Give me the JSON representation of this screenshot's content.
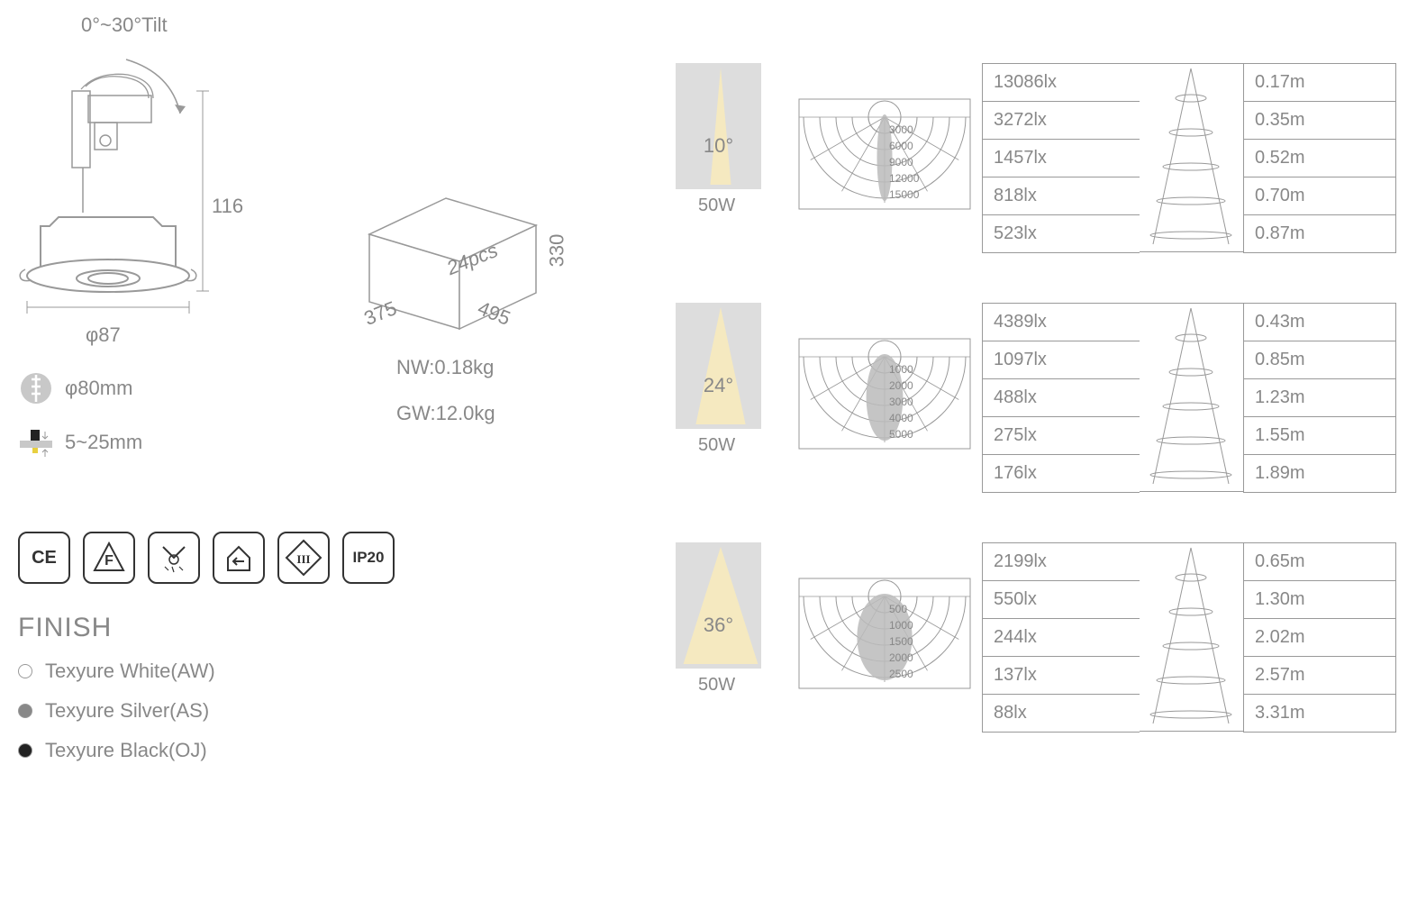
{
  "dimensions": {
    "tilt": "0°~30°Tilt",
    "height": "116",
    "diameter": "φ87",
    "cutout": "φ80mm",
    "thickness": "5~25mm"
  },
  "packaging": {
    "qty": "24pcs",
    "depth": "375",
    "width": "495",
    "height": "330",
    "nw": "NW:0.18kg",
    "gw": "GW:12.0kg"
  },
  "certifications": [
    "CE",
    "F",
    "",
    "",
    "III",
    "IP20"
  ],
  "finish": {
    "title": "FINISH",
    "options": [
      {
        "label": "Texyure White(AW)",
        "color": "#ffffff"
      },
      {
        "label": "Texyure Silver(AS)",
        "color": "#888888"
      },
      {
        "label": "Texyure Black(OJ)",
        "color": "#222222"
      }
    ]
  },
  "photometric": [
    {
      "angle": "10°",
      "wattage": "50W",
      "polar_ticks": [
        "3000",
        "6000",
        "9000",
        "12000",
        "15000"
      ],
      "lux": [
        "13086lx",
        "3272lx",
        "1457lx",
        "818lx",
        "523lx"
      ],
      "dist": [
        "0.17m",
        "0.35m",
        "0.52m",
        "0.70m",
        "0.87m"
      ],
      "beam_half": 5
    },
    {
      "angle": "24°",
      "wattage": "50W",
      "polar_ticks": [
        "1000",
        "2000",
        "3000",
        "4000",
        "5000"
      ],
      "lux": [
        "4389lx",
        "1097lx",
        "488lx",
        "275lx",
        "176lx"
      ],
      "dist": [
        "0.43m",
        "0.85m",
        "1.23m",
        "1.55m",
        "1.89m"
      ],
      "beam_half": 12
    },
    {
      "angle": "36°",
      "wattage": "50W",
      "polar_ticks": [
        "500",
        "1000",
        "1500",
        "2000",
        "2500"
      ],
      "lux": [
        "2199lx",
        "550lx",
        "244lx",
        "137lx",
        "88lx"
      ],
      "dist": [
        "0.65m",
        "1.30m",
        "2.02m",
        "2.57m",
        "3.31m"
      ],
      "beam_half": 18
    }
  ],
  "colors": {
    "line": "#999999",
    "text": "#888888",
    "beam": "#f5e9c0",
    "angle_bg": "#dddddd",
    "polar_fill": "#bbbbbb"
  }
}
